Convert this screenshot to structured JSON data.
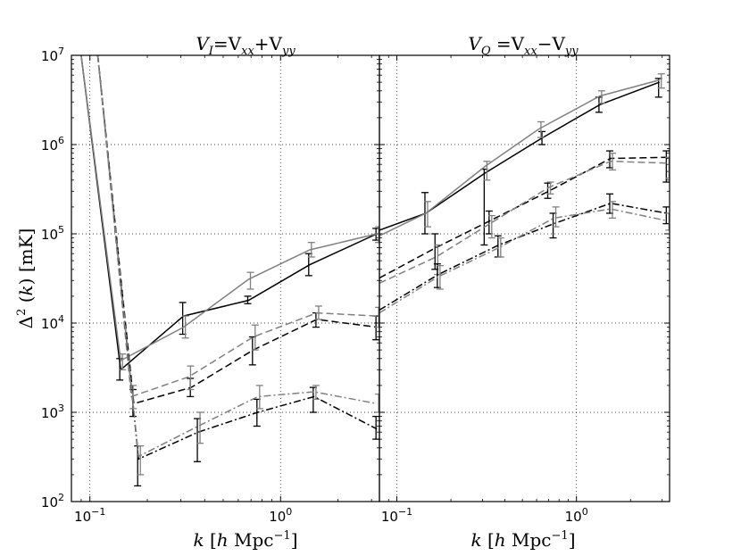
{
  "chart_data": [
    {
      "type": "line",
      "panel": "left",
      "title": "V_I = V_xx + V_yy",
      "title_parts": [
        "V",
        "I",
        "=V",
        "xx",
        "+V",
        "yy"
      ],
      "xlabel": "k [h Mpc^-1]",
      "xlabel_parts": [
        "k",
        " [",
        "h",
        " Mpc",
        "−1",
        "]"
      ],
      "ylabel": "Δ^2 (k) [mK]",
      "ylabel_parts": [
        "Δ",
        "2",
        " (",
        "k",
        ") [mK]"
      ],
      "xscale": "log",
      "yscale": "log",
      "xlim": [
        0.08,
        3.3
      ],
      "ylim": [
        100,
        10000000
      ],
      "x_ticks": [
        {
          "value": 0.1,
          "base": "10",
          "exp": "−1"
        },
        {
          "value": 1,
          "base": "10",
          "exp": "0"
        }
      ],
      "y_ticks": [
        {
          "value": 100,
          "base": "10",
          "exp": "2"
        },
        {
          "value": 1000,
          "base": "10",
          "exp": "3"
        },
        {
          "value": 10000,
          "base": "10",
          "exp": "4"
        },
        {
          "value": 100000,
          "base": "10",
          "exp": "5"
        },
        {
          "value": 1000000,
          "base": "10",
          "exp": "6"
        },
        {
          "value": 10000000,
          "base": "10",
          "exp": "7"
        }
      ],
      "grid": true,
      "series": [
        {
          "name": "black solid",
          "color": "#000000",
          "dash": "solid",
          "x": [
            0.09,
            0.145,
            0.31,
            0.68,
            1.42,
            3.2
          ],
          "y": [
            10000000,
            3000,
            12000,
            18000,
            45000,
            100000
          ],
          "err_low": [
            null,
            2300,
            7500,
            16500,
            34000,
            85000
          ],
          "err_high": [
            null,
            4000,
            17000,
            20000,
            60000,
            115000
          ]
        },
        {
          "name": "gray solid",
          "color": "#808080",
          "dash": "solid",
          "x": [
            0.09,
            0.145,
            0.31,
            0.68,
            1.42,
            3.2
          ],
          "y": [
            10000000,
            3800,
            9000,
            31000,
            66000,
            100000
          ],
          "err_low": [
            null,
            3000,
            6800,
            24000,
            55000,
            80000
          ],
          "err_high": [
            null,
            4500,
            12000,
            37000,
            80000,
            120000
          ]
        },
        {
          "name": "black dashed",
          "color": "#000000",
          "dash": "dashed",
          "x": [
            0.11,
            0.17,
            0.34,
            0.72,
            1.55,
            3.2
          ],
          "y": [
            10000000,
            1250,
            1900,
            5000,
            11000,
            9000
          ],
          "err_low": [
            null,
            900,
            1500,
            3400,
            9000,
            6500
          ],
          "err_high": [
            null,
            1800,
            2400,
            7000,
            13000,
            12000
          ]
        },
        {
          "name": "gray dashed",
          "color": "#808080",
          "dash": "dashed",
          "x": [
            0.11,
            0.165,
            0.33,
            0.72,
            1.55,
            3.2
          ],
          "y": [
            10000000,
            1500,
            2500,
            7000,
            13000,
            12000
          ],
          "err_low": [
            null,
            1100,
            1800,
            5000,
            11000,
            9000
          ],
          "err_high": [
            null,
            2000,
            3300,
            9500,
            15500,
            15000
          ]
        },
        {
          "name": "black dash-dot",
          "color": "#000000",
          "dash": "dashdot",
          "x": [
            0.11,
            0.18,
            0.37,
            0.76,
            1.5,
            3.2
          ],
          "y": [
            10000000,
            300,
            600,
            1000,
            1500,
            650
          ],
          "err_low": [
            null,
            150,
            280,
            700,
            1000,
            500
          ],
          "err_high": [
            null,
            420,
            850,
            1400,
            1900,
            900
          ]
        },
        {
          "name": "gray dash-dot",
          "color": "#808080",
          "dash": "dashdot",
          "x": [
            0.11,
            0.18,
            0.37,
            0.76,
            1.5,
            3.2
          ],
          "y": [
            10000000,
            320,
            700,
            1500,
            1700,
            1250
          ],
          "err_low": [
            null,
            200,
            450,
            1100,
            1400,
            1000
          ],
          "err_high": [
            null,
            420,
            1000,
            2000,
            2000,
            1600
          ]
        }
      ]
    },
    {
      "type": "line",
      "panel": "right",
      "title": "V_Q = V_xx − V_yy",
      "title_parts": [
        "V",
        "Q",
        " =V",
        "xx",
        "−V",
        "yy"
      ],
      "xlabel": "k [h Mpc^-1]",
      "xlabel_parts": [
        "k",
        " [",
        "h",
        " Mpc",
        "−1",
        "]"
      ],
      "xscale": "log",
      "yscale": "log",
      "xlim": [
        0.08,
        3.3
      ],
      "ylim": [
        100,
        10000000
      ],
      "x_ticks": [
        {
          "value": 0.1,
          "base": "10",
          "exp": "−1"
        },
        {
          "value": 1,
          "base": "10",
          "exp": "0"
        }
      ],
      "grid": true,
      "series": [
        {
          "name": "black solid",
          "color": "#000000",
          "dash": "solid",
          "x": [
            0.08,
            0.145,
            0.31,
            0.65,
            1.35,
            2.9
          ],
          "y": [
            110000,
            170000,
            480000,
            1200000,
            2800000,
            5000000
          ],
          "err_low": [
            null,
            100000,
            75000,
            1000000,
            2300000,
            3400000
          ],
          "err_high": [
            null,
            290000,
            530000,
            1400000,
            3400000,
            5500000
          ]
        },
        {
          "name": "gray solid",
          "color": "#808080",
          "dash": "solid",
          "x": [
            0.08,
            0.145,
            0.31,
            0.62,
            1.35,
            2.9
          ],
          "y": [
            95000,
            170000,
            570000,
            1500000,
            3500000,
            5300000
          ],
          "err_low": [
            null,
            120000,
            400000,
            1200000,
            2900000,
            4300000
          ],
          "err_high": [
            null,
            230000,
            650000,
            1800000,
            4000000,
            6200000
          ]
        },
        {
          "name": "black dashed",
          "color": "#000000",
          "dash": "dashed",
          "x": [
            0.08,
            0.165,
            0.33,
            0.7,
            1.55,
            3.2
          ],
          "y": [
            32000,
            70000,
            140000,
            300000,
            700000,
            720000
          ],
          "err_low": [
            null,
            40000,
            100000,
            250000,
            550000,
            380000
          ],
          "err_high": [
            null,
            100000,
            180000,
            370000,
            850000,
            850000
          ]
        },
        {
          "name": "gray dashed",
          "color": "#808080",
          "dash": "dashed",
          "x": [
            0.08,
            0.165,
            0.33,
            0.7,
            1.55,
            3.2
          ],
          "y": [
            28000,
            55000,
            130000,
            330000,
            650000,
            620000
          ],
          "err_low": [
            null,
            35000,
            90000,
            280000,
            520000,
            420000
          ],
          "err_high": [
            null,
            75000,
            160000,
            380000,
            800000,
            720000
          ]
        },
        {
          "name": "black dash-dot",
          "color": "#000000",
          "dash": "dashdot",
          "x": [
            0.08,
            0.17,
            0.37,
            0.75,
            1.55,
            3.2
          ],
          "y": [
            14000,
            35000,
            75000,
            130000,
            220000,
            170000
          ],
          "err_low": [
            null,
            25000,
            55000,
            90000,
            170000,
            130000
          ],
          "err_high": [
            null,
            46000,
            95000,
            170000,
            280000,
            200000
          ]
        },
        {
          "name": "gray dash-dot",
          "color": "#808080",
          "dash": "dashdot",
          "x": [
            0.08,
            0.17,
            0.37,
            0.75,
            1.55,
            3.2
          ],
          "y": [
            13000,
            33000,
            70000,
            150000,
            190000,
            140000
          ],
          "err_low": [
            null,
            24000,
            55000,
            120000,
            150000,
            110000
          ],
          "err_high": [
            null,
            44000,
            90000,
            200000,
            230000,
            170000
          ]
        }
      ]
    }
  ]
}
